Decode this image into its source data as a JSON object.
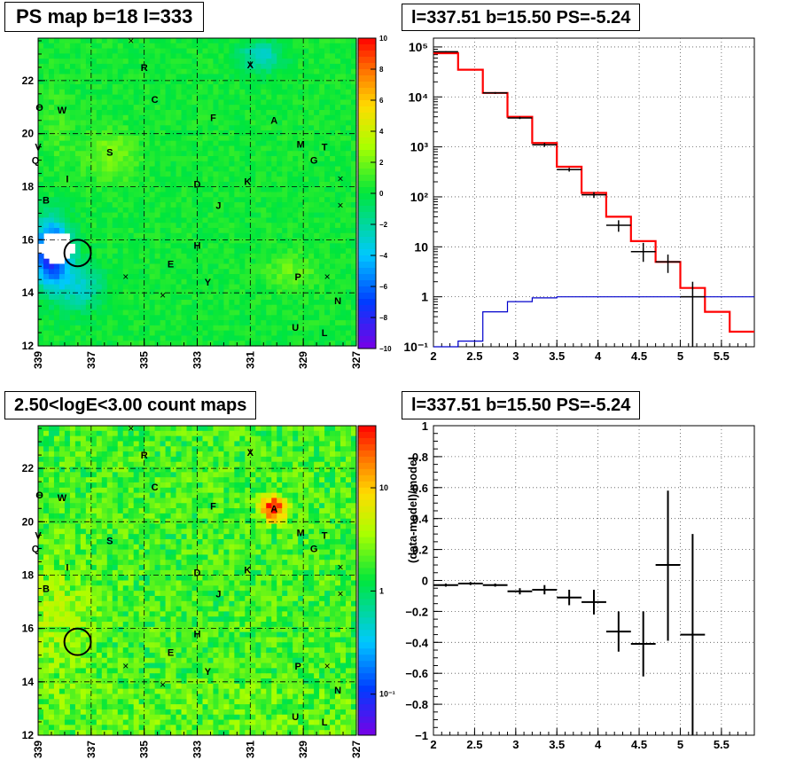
{
  "panels": {
    "ps_map": {
      "title": "PS map b=18 l=333"
    },
    "spectrum": {
      "title": "l=337.51 b=15.50 PS=-5.24"
    },
    "count_map": {
      "title": "2.50<logE<3.00 count maps"
    },
    "residual": {
      "title": "l=337.51 b=15.50 PS=-5.24"
    }
  },
  "chart_data": [
    {
      "id": "ps_map",
      "type": "heatmap",
      "title": "PS map b=18 l=333",
      "xlim": [
        339,
        327
      ],
      "ylim": [
        12,
        23.6
      ],
      "x_ticks": [
        "339",
        "337",
        "335",
        "333",
        "331",
        "329",
        "327"
      ],
      "y_ticks": [
        "12",
        "14",
        "16",
        "18",
        "20",
        "22"
      ],
      "colorbar": {
        "range": [
          -10,
          10
        ],
        "ticks": [
          "10",
          "8",
          "6",
          "4",
          "2",
          "0",
          "−2",
          "−4",
          "−6",
          "−8",
          "−10"
        ],
        "scale": "linear"
      },
      "grid": true,
      "source_labels": [
        {
          "t": "O",
          "l": 338.95,
          "b": 21.0
        },
        {
          "t": "W",
          "l": 338.1,
          "b": 20.9
        },
        {
          "t": "R",
          "l": 335.0,
          "b": 22.5
        },
        {
          "t": "C",
          "l": 334.6,
          "b": 21.3
        },
        {
          "t": "X",
          "l": 331.0,
          "b": 22.6
        },
        {
          "t": "F",
          "l": 332.4,
          "b": 20.6
        },
        {
          "t": "A",
          "l": 330.1,
          "b": 20.5
        },
        {
          "t": "M",
          "l": 329.1,
          "b": 19.6
        },
        {
          "t": "T",
          "l": 328.2,
          "b": 19.5
        },
        {
          "t": "G",
          "l": 328.6,
          "b": 19.0
        },
        {
          "t": "V",
          "l": 339.0,
          "b": 19.5
        },
        {
          "t": "Q",
          "l": 339.1,
          "b": 19.0
        },
        {
          "t": "S",
          "l": 336.3,
          "b": 19.3
        },
        {
          "t": "I",
          "l": 337.9,
          "b": 18.3
        },
        {
          "t": "D",
          "l": 333.0,
          "b": 18.1
        },
        {
          "t": "K",
          "l": 331.1,
          "b": 18.2
        },
        {
          "t": "B",
          "l": 338.7,
          "b": 17.5
        },
        {
          "t": "J",
          "l": 332.2,
          "b": 17.3
        },
        {
          "t": "H",
          "l": 333.0,
          "b": 15.8
        },
        {
          "t": "E",
          "l": 334.0,
          "b": 15.1
        },
        {
          "t": "Y",
          "l": 332.6,
          "b": 14.4
        },
        {
          "t": "P",
          "l": 329.2,
          "b": 14.6
        },
        {
          "t": "N",
          "l": 327.7,
          "b": 13.7
        },
        {
          "t": "U",
          "l": 329.3,
          "b": 12.7
        },
        {
          "t": "L",
          "l": 328.2,
          "b": 12.5
        }
      ],
      "x_markers": [
        {
          "l": 335.5,
          "b": 23.5
        },
        {
          "l": 331.0,
          "b": 22.6
        },
        {
          "l": 327.6,
          "b": 18.3
        },
        {
          "l": 327.6,
          "b": 17.3
        },
        {
          "l": 335.7,
          "b": 14.6
        },
        {
          "l": 334.3,
          "b": 13.9
        },
        {
          "l": 328.1,
          "b": 14.6
        }
      ],
      "circle": {
        "l": 337.51,
        "b": 15.5,
        "r": 0.5
      }
    },
    {
      "id": "spectrum",
      "type": "line",
      "title": "l=337.51 b=15.50 PS=-5.24",
      "xlim": [
        2,
        5.9
      ],
      "ylim": [
        0.1,
        150000
      ],
      "y_scale": "log",
      "x_ticks": [
        "2",
        "2.5",
        "3",
        "3.5",
        "4",
        "4.5",
        "5",
        "5.5"
      ],
      "y_ticks": [
        "10⁻¹",
        "1",
        "10",
        "10²",
        "10³",
        "10⁴",
        "10⁵"
      ],
      "grid": true,
      "series": [
        {
          "color": "#ff0000",
          "kind": "step",
          "edges": [
            2.0,
            2.3,
            2.6,
            2.9,
            3.2,
            3.5,
            3.8,
            4.1,
            4.4,
            4.7,
            5.0,
            5.3,
            5.6,
            5.9
          ],
          "values": [
            75000,
            35000,
            12000,
            4000,
            1200,
            400,
            120,
            40,
            13,
            5,
            1.5,
            0.5,
            0.2
          ]
        },
        {
          "color": "#0000cc",
          "kind": "step",
          "edges": [
            2.0,
            2.3,
            2.6,
            2.9,
            3.2,
            3.5,
            3.8,
            4.1,
            4.4,
            4.7,
            5.0,
            5.3,
            5.6,
            5.9
          ],
          "values": [
            0.1,
            0.13,
            0.5,
            0.8,
            0.95,
            1.0,
            1.0,
            1.0,
            1.0,
            1.0,
            1.0,
            1.0,
            1.0
          ]
        },
        {
          "color": "#000000",
          "kind": "points",
          "points": [
            {
              "x": 2.15,
              "y": 80000,
              "xerr": 0.15,
              "lo": 78000,
              "hi": 82000
            },
            {
              "x": 2.75,
              "y": 12000,
              "xerr": 0.15,
              "lo": 11500,
              "hi": 12500
            },
            {
              "x": 3.05,
              "y": 3800,
              "xerr": 0.15,
              "lo": 3600,
              "hi": 4000
            },
            {
              "x": 3.35,
              "y": 1100,
              "xerr": 0.15,
              "lo": 1000,
              "hi": 1200
            },
            {
              "x": 3.65,
              "y": 350,
              "xerr": 0.15,
              "lo": 320,
              "hi": 380
            },
            {
              "x": 3.95,
              "y": 110,
              "xerr": 0.15,
              "lo": 95,
              "hi": 125
            },
            {
              "x": 4.25,
              "y": 27,
              "xerr": 0.15,
              "lo": 20,
              "hi": 34
            },
            {
              "x": 4.55,
              "y": 8,
              "xerr": 0.15,
              "lo": 5,
              "hi": 12
            },
            {
              "x": 4.85,
              "y": 5,
              "xerr": 0.15,
              "lo": 3,
              "hi": 7
            },
            {
              "x": 5.15,
              "y": 1,
              "xerr": 0.15,
              "lo": 0.1,
              "hi": 2
            }
          ]
        }
      ]
    },
    {
      "id": "count_map",
      "type": "heatmap",
      "title": "2.50<logE<3.00 count maps",
      "xlim": [
        339,
        327
      ],
      "ylim": [
        12,
        23.6
      ],
      "x_ticks": [
        "339",
        "337",
        "335",
        "333",
        "331",
        "329",
        "327"
      ],
      "y_ticks": [
        "12",
        "14",
        "16",
        "18",
        "20",
        "22"
      ],
      "colorbar": {
        "scale": "log",
        "range": [
          0.04,
          40
        ],
        "ticks": [
          {
            "label": "10",
            "value": 10
          },
          {
            "label": "1",
            "value": 1
          },
          {
            "label": "10⁻¹",
            "value": 0.1
          }
        ]
      },
      "grid": true,
      "circle": {
        "l": 337.51,
        "b": 15.5,
        "r": 0.5
      }
    },
    {
      "id": "residual",
      "type": "scatter",
      "title": "l=337.51 b=15.50 PS=-5.24",
      "ylabel": "(data-model)/model",
      "xlim": [
        2,
        5.9
      ],
      "ylim": [
        -1,
        1
      ],
      "x_ticks": [
        "2",
        "2.5",
        "3",
        "3.5",
        "4",
        "4.5",
        "5",
        "5.5"
      ],
      "y_ticks": [
        "−1",
        "−0.8",
        "−0.6",
        "−0.4",
        "−0.2",
        "0",
        "0.2",
        "0.4",
        "0.6",
        "0.8",
        "1"
      ],
      "grid": true,
      "points": [
        {
          "x": 2.15,
          "y": -0.03,
          "xerr": 0.15,
          "lo": -0.04,
          "hi": -0.02
        },
        {
          "x": 2.45,
          "y": -0.02,
          "xerr": 0.15,
          "lo": -0.03,
          "hi": -0.01
        },
        {
          "x": 2.75,
          "y": -0.03,
          "xerr": 0.15,
          "lo": -0.04,
          "hi": -0.02
        },
        {
          "x": 3.05,
          "y": -0.07,
          "xerr": 0.15,
          "lo": -0.09,
          "hi": -0.05
        },
        {
          "x": 3.35,
          "y": -0.06,
          "xerr": 0.15,
          "lo": -0.09,
          "hi": -0.03
        },
        {
          "x": 3.65,
          "y": -0.11,
          "xerr": 0.15,
          "lo": -0.16,
          "hi": -0.06
        },
        {
          "x": 3.95,
          "y": -0.14,
          "xerr": 0.15,
          "lo": -0.22,
          "hi": -0.06
        },
        {
          "x": 4.25,
          "y": -0.33,
          "xerr": 0.15,
          "lo": -0.46,
          "hi": -0.2
        },
        {
          "x": 4.55,
          "y": -0.41,
          "xerr": 0.15,
          "lo": -0.62,
          "hi": -0.2
        },
        {
          "x": 4.85,
          "y": 0.1,
          "xerr": 0.15,
          "lo": -0.39,
          "hi": 0.58
        },
        {
          "x": 5.15,
          "y": -0.35,
          "xerr": 0.15,
          "lo": -1.0,
          "hi": 0.3
        }
      ]
    }
  ]
}
